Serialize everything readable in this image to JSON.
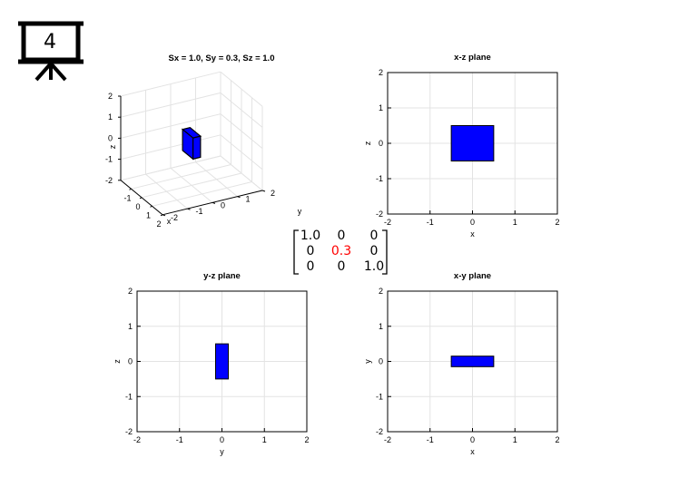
{
  "slide": {
    "number": "4",
    "icon": "presentation-board-icon"
  },
  "matrix": {
    "cells": [
      [
        "1.0",
        "0",
        "0"
      ],
      [
        "0",
        "0.3",
        "0"
      ],
      [
        "0",
        "0",
        "1.0"
      ]
    ],
    "highlight": {
      "row": 1,
      "col": 1,
      "color": "#ff0000"
    }
  },
  "colors": {
    "box_fill": "#0000ff",
    "box_edge": "#000000",
    "grid": "#e3e3e3"
  },
  "chart_data": [
    {
      "type": "3d-box",
      "title": "Sx = 1.0, Sy = 0.3, Sz = 1.0",
      "xlabel": "x",
      "ylabel": "y",
      "zlabel": "z",
      "xlim": [
        -2,
        2
      ],
      "ylim": [
        -2,
        2
      ],
      "zlim": [
        -2,
        2
      ],
      "xticks": [
        "-1",
        "0",
        "1",
        "2"
      ],
      "yticks": [
        "-2",
        "-1",
        "0",
        "1",
        "2"
      ],
      "zticks": [
        "-2",
        "-1",
        "0",
        "1",
        "2"
      ],
      "box": {
        "x": [
          -0.5,
          0.5
        ],
        "y": [
          -0.15,
          0.15
        ],
        "z": [
          -0.5,
          0.5
        ]
      },
      "grid": true
    },
    {
      "type": "rectangle",
      "title": "x-z plane",
      "xlabel": "x",
      "ylabel": "z",
      "xlim": [
        -2,
        2
      ],
      "ylim": [
        -2,
        2
      ],
      "xticks": [
        "-2",
        "-1",
        "0",
        "1",
        "2"
      ],
      "yticks": [
        "-2",
        "-1",
        "0",
        "1",
        "2"
      ],
      "rect": {
        "x": [
          -0.5,
          0.5
        ],
        "y": [
          -0.5,
          0.5
        ]
      },
      "grid": true
    },
    {
      "type": "rectangle",
      "title": "y-z plane",
      "xlabel": "y",
      "ylabel": "z",
      "xlim": [
        -2,
        2
      ],
      "ylim": [
        -2,
        2
      ],
      "xticks": [
        "-2",
        "-1",
        "0",
        "1",
        "2"
      ],
      "yticks": [
        "-2",
        "-1",
        "0",
        "1",
        "2"
      ],
      "rect": {
        "x": [
          -0.15,
          0.15
        ],
        "y": [
          -0.5,
          0.5
        ]
      },
      "grid": true
    },
    {
      "type": "rectangle",
      "title": "x-y plane",
      "xlabel": "x",
      "ylabel": "y",
      "xlim": [
        -2,
        2
      ],
      "ylim": [
        -2,
        2
      ],
      "xticks": [
        "-2",
        "-1",
        "0",
        "1",
        "2"
      ],
      "yticks": [
        "-2",
        "-1",
        "0",
        "1",
        "2"
      ],
      "rect": {
        "x": [
          -0.5,
          0.5
        ],
        "y": [
          -0.15,
          0.15
        ]
      },
      "grid": true
    }
  ]
}
